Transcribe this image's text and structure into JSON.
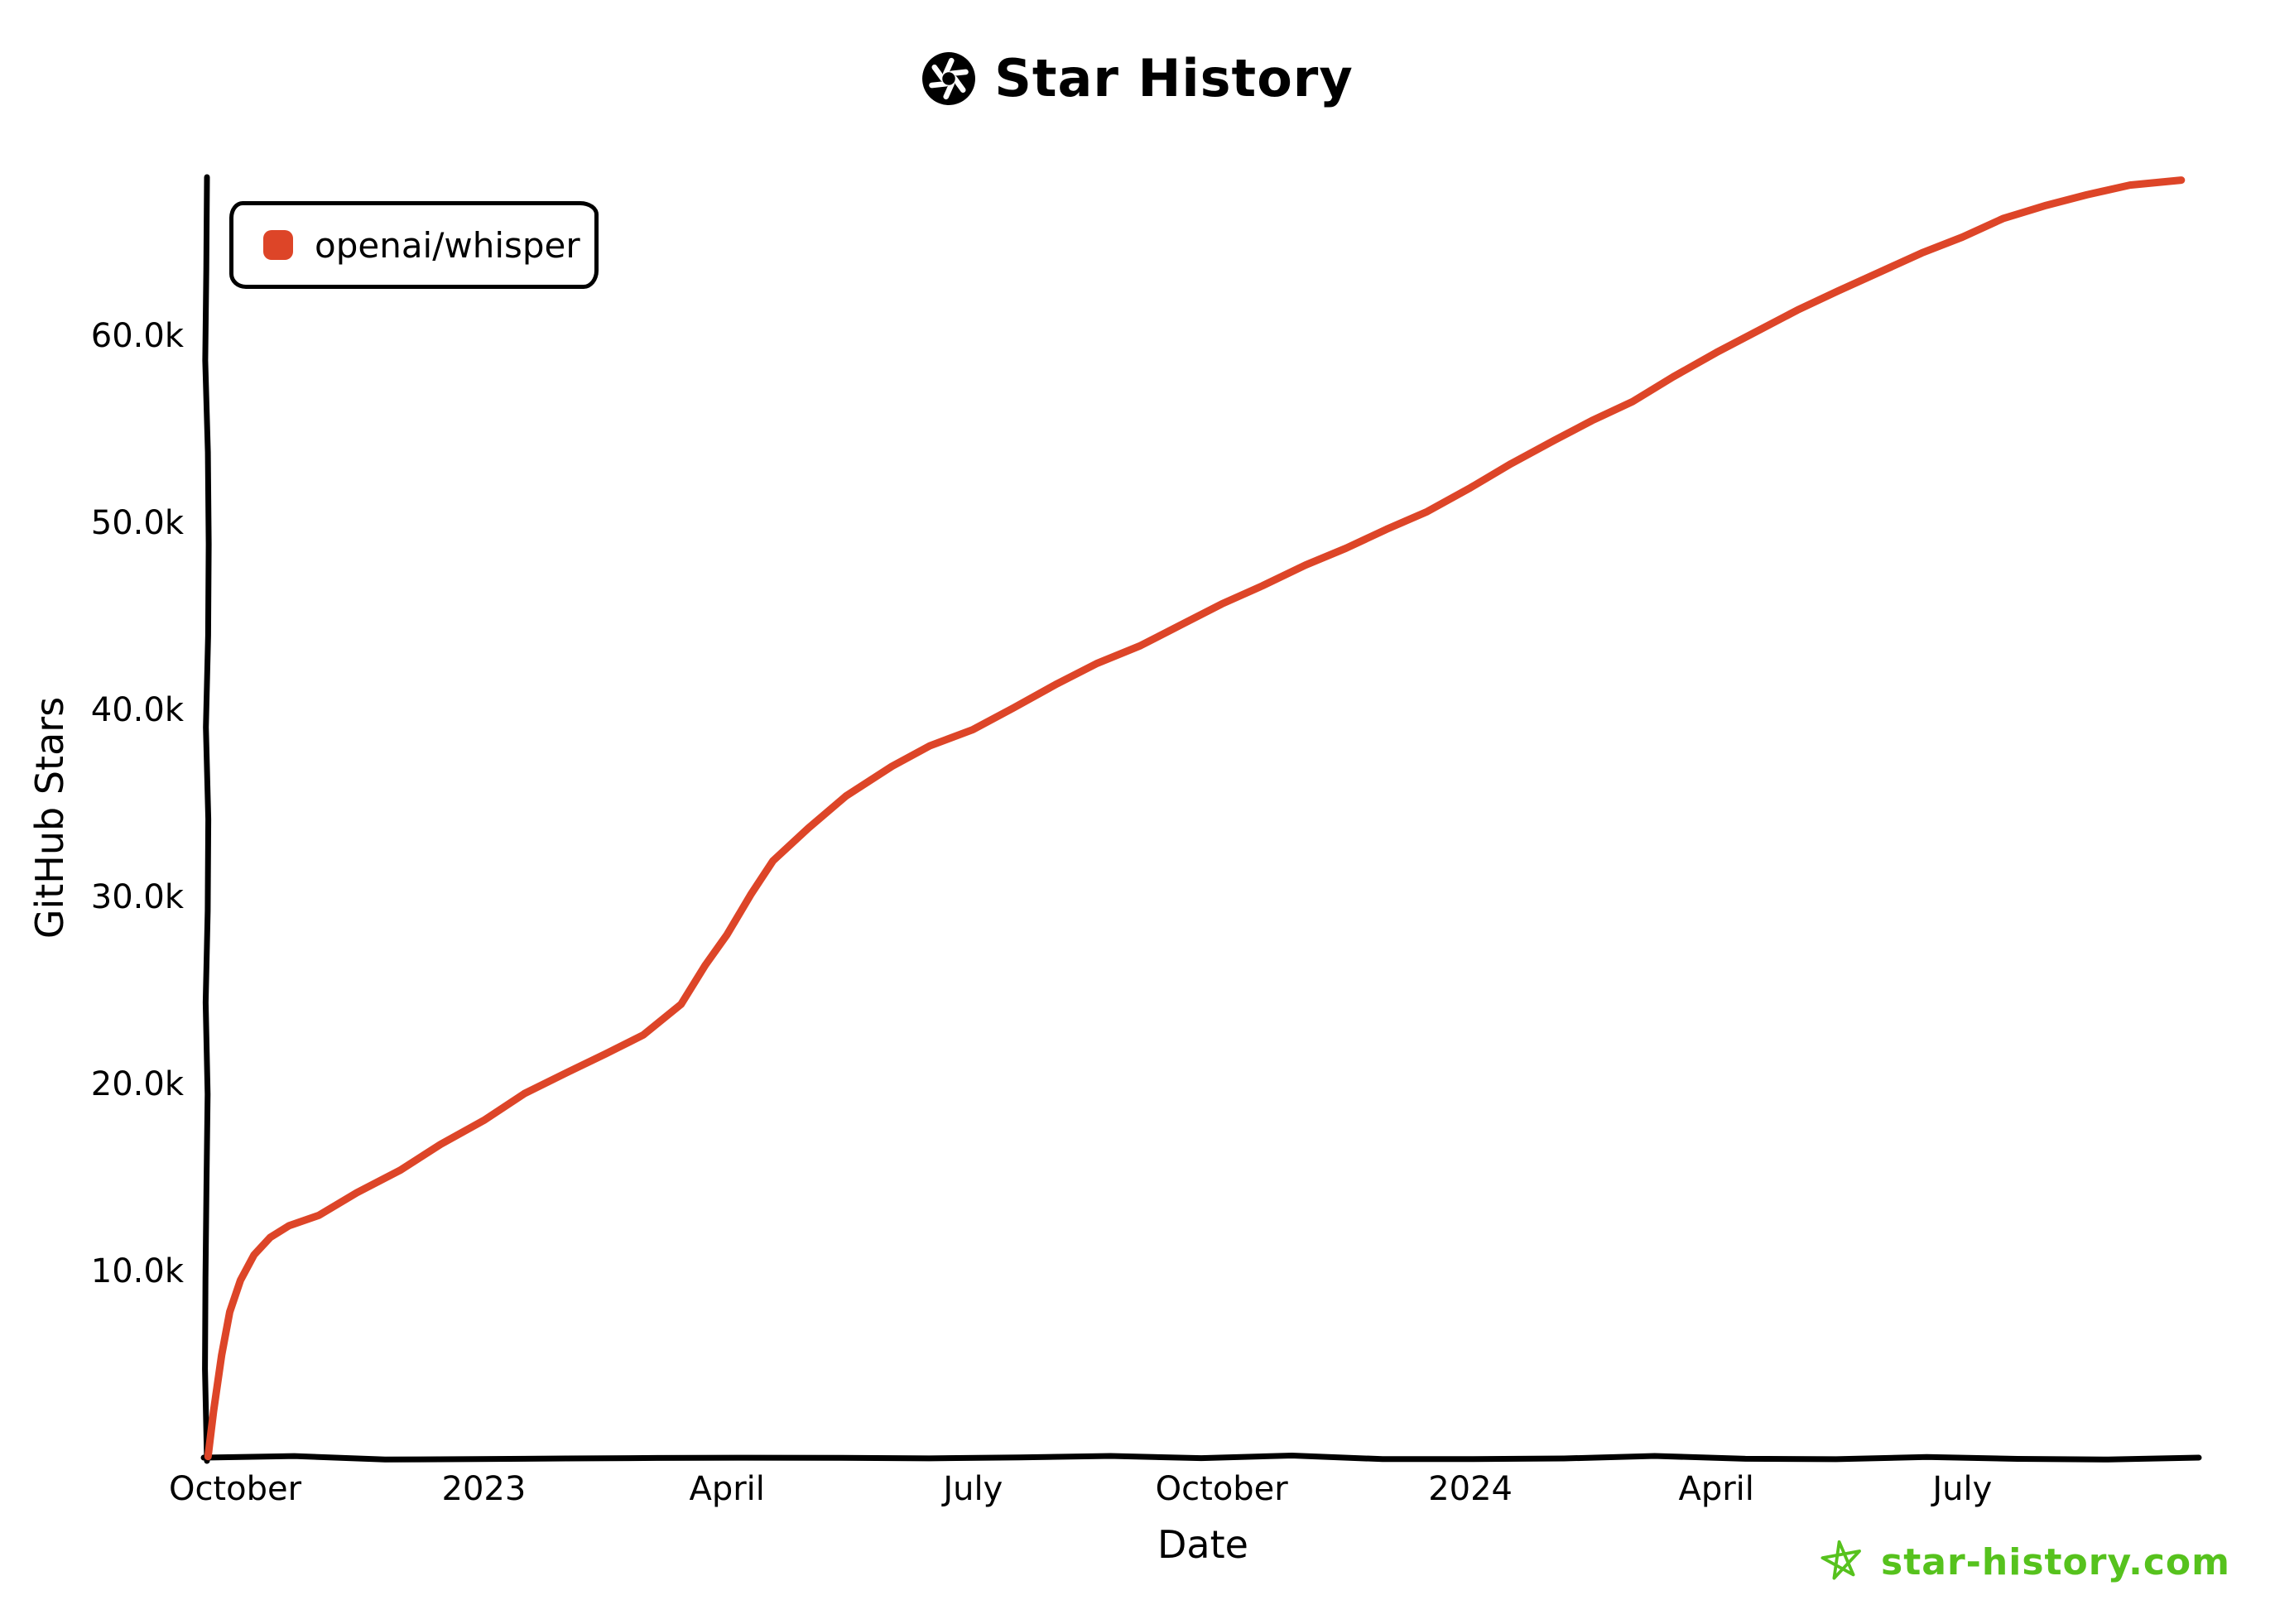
{
  "header": {
    "title": "Star History"
  },
  "legend": {
    "series_label": "openai/whisper",
    "marker_color": "#dd4528"
  },
  "footer": {
    "site": "star-history.com",
    "color": "#56c21d"
  },
  "chart_data": {
    "type": "line",
    "title": "Star History",
    "xlabel": "Date",
    "ylabel": "GitHub Stars",
    "legend_position": "top-left",
    "grid": false,
    "ylim": [
      0,
      68500
    ],
    "xlim": [
      "2022-09-18",
      "2024-09-22"
    ],
    "y_ticks": [
      {
        "value": 10000,
        "label": "10.0k"
      },
      {
        "value": 20000,
        "label": "20.0k"
      },
      {
        "value": 30000,
        "label": "30.0k"
      },
      {
        "value": 40000,
        "label": "40.0k"
      },
      {
        "value": 50000,
        "label": "50.0k"
      },
      {
        "value": 60000,
        "label": "60.0k"
      }
    ],
    "x_ticks": [
      {
        "date": "2022-10-01",
        "label": "October"
      },
      {
        "date": "2023-01-01",
        "label": "2023"
      },
      {
        "date": "2023-04-01",
        "label": "April"
      },
      {
        "date": "2023-07-01",
        "label": "July"
      },
      {
        "date": "2023-10-01",
        "label": "October"
      },
      {
        "date": "2024-01-01",
        "label": "2024"
      },
      {
        "date": "2024-04-01",
        "label": "April"
      },
      {
        "date": "2024-07-01",
        "label": "July"
      }
    ],
    "series": [
      {
        "name": "openai/whisper",
        "color": "#dd4528",
        "data": [
          [
            "2022-09-21",
            0
          ],
          [
            "2022-09-23",
            2500
          ],
          [
            "2022-09-26",
            5500
          ],
          [
            "2022-09-29",
            7800
          ],
          [
            "2022-10-03",
            9500
          ],
          [
            "2022-10-08",
            10800
          ],
          [
            "2022-10-14",
            11800
          ],
          [
            "2022-10-21",
            12400
          ],
          [
            "2022-11-01",
            13000
          ],
          [
            "2022-11-15",
            14200
          ],
          [
            "2022-12-01",
            15400
          ],
          [
            "2022-12-16",
            16700
          ],
          [
            "2023-01-01",
            18000
          ],
          [
            "2023-01-16",
            19400
          ],
          [
            "2023-02-01",
            20600
          ],
          [
            "2023-02-15",
            21600
          ],
          [
            "2023-03-01",
            22600
          ],
          [
            "2023-03-15",
            24200
          ],
          [
            "2023-03-24",
            26300
          ],
          [
            "2023-04-01",
            28000
          ],
          [
            "2023-04-10",
            30200
          ],
          [
            "2023-04-18",
            31900
          ],
          [
            "2023-05-01",
            33600
          ],
          [
            "2023-05-15",
            35400
          ],
          [
            "2023-06-01",
            37000
          ],
          [
            "2023-06-15",
            38000
          ],
          [
            "2023-07-01",
            38900
          ],
          [
            "2023-07-16",
            40100
          ],
          [
            "2023-08-01",
            41300
          ],
          [
            "2023-08-16",
            42400
          ],
          [
            "2023-09-01",
            43400
          ],
          [
            "2023-09-16",
            44500
          ],
          [
            "2023-10-01",
            45600
          ],
          [
            "2023-10-16",
            46600
          ],
          [
            "2023-11-01",
            47700
          ],
          [
            "2023-11-16",
            48600
          ],
          [
            "2023-12-01",
            49600
          ],
          [
            "2023-12-16",
            50600
          ],
          [
            "2024-01-01",
            51900
          ],
          [
            "2024-01-16",
            53100
          ],
          [
            "2024-02-01",
            54400
          ],
          [
            "2024-02-15",
            55400
          ],
          [
            "2024-03-01",
            56500
          ],
          [
            "2024-03-16",
            57800
          ],
          [
            "2024-04-01",
            59100
          ],
          [
            "2024-04-16",
            60200
          ],
          [
            "2024-05-01",
            61300
          ],
          [
            "2024-05-16",
            62400
          ],
          [
            "2024-06-01",
            63400
          ],
          [
            "2024-06-16",
            64400
          ],
          [
            "2024-07-01",
            65300
          ],
          [
            "2024-07-16",
            66200
          ],
          [
            "2024-08-01",
            66900
          ],
          [
            "2024-08-16",
            67500
          ],
          [
            "2024-09-01",
            68000
          ],
          [
            "2024-09-20",
            68300
          ]
        ]
      }
    ]
  }
}
